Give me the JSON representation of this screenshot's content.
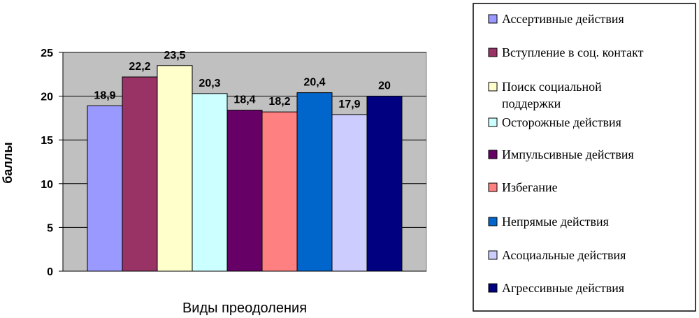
{
  "chart_data": {
    "type": "bar",
    "categories": [
      "Ассертивные действия",
      "Вступление в соц. контакт",
      "Поиск социальной поддержки",
      "Осторожные действия",
      "Импульсивные действия",
      "Избегание",
      "Непрямые действия",
      "Асоциальные действия",
      "Агрессивные действия"
    ],
    "values": [
      18.9,
      22.2,
      23.5,
      20.3,
      18.4,
      18.2,
      20.4,
      17.9,
      20
    ],
    "value_labels": [
      "18,9",
      "22,2",
      "23,5",
      "20,3",
      "18,4",
      "18,2",
      "20,4",
      "17,9",
      "20"
    ],
    "colors": [
      "#9999ff",
      "#993366",
      "#ffffcc",
      "#ccffff",
      "#660066",
      "#ff8080",
      "#0066cc",
      "#ccccff",
      "#000080"
    ],
    "legend_lines": [
      [
        "Ассертивные действия"
      ],
      [
        "Вступление в соц. контакт"
      ],
      [
        "Поиск социальной",
        "поддержки"
      ],
      [
        "Осторожные действия"
      ],
      [
        "Импульсивные действия"
      ],
      [
        "Избегание"
      ],
      [
        "Непрямые действия"
      ],
      [
        "Асоциальные действия"
      ],
      [
        "Агрессивные действия"
      ]
    ],
    "title": "",
    "xlabel": "Виды преодоления",
    "ylabel": "баллы",
    "ylim": [
      0,
      25
    ],
    "yticks": [
      0,
      5,
      10,
      15,
      20,
      25
    ],
    "grid": true,
    "plot_background": "#c0c0c0",
    "legend_position": "right"
  }
}
